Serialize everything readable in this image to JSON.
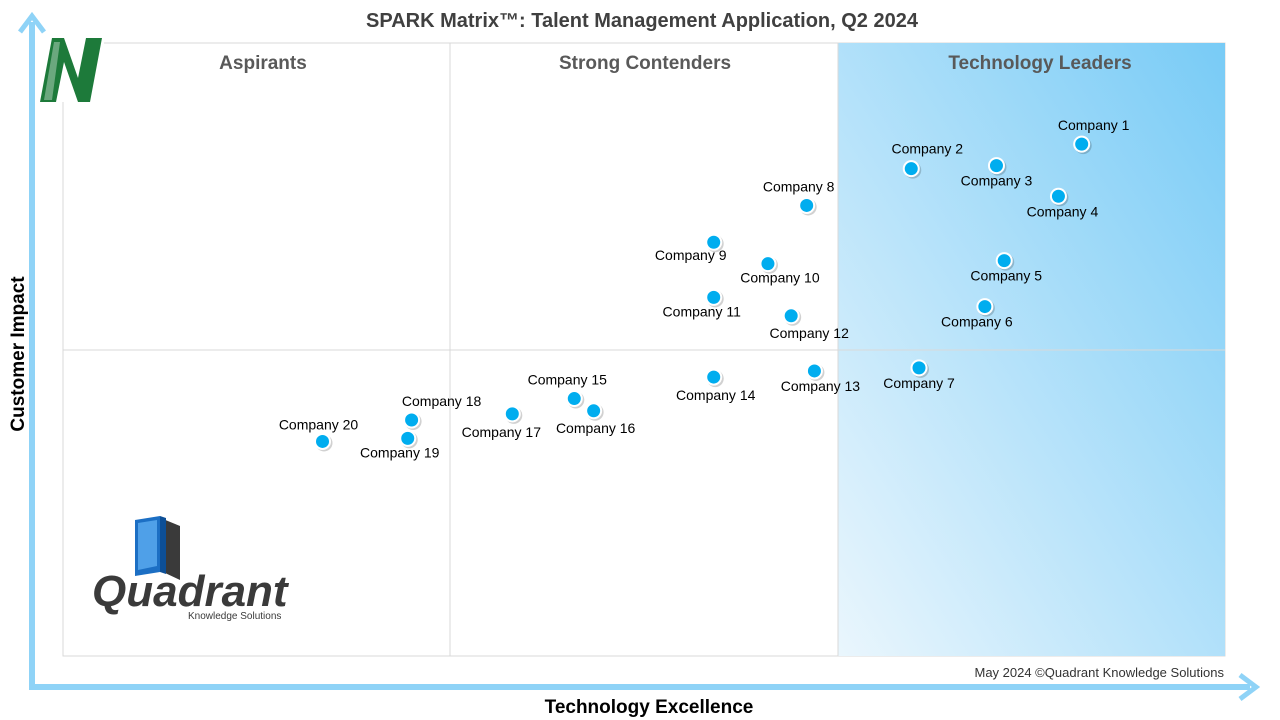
{
  "chart_data": {
    "type": "scatter",
    "title": "SPARK Matrix™: Talent Management Application, Q2 2024",
    "xlabel": "Technology Excellence",
    "ylabel": "Customer Impact",
    "xlim": [
      0,
      3
    ],
    "ylim": [
      0,
      2
    ],
    "quadrants": [
      {
        "label": "Aspirants"
      },
      {
        "label": "Strong Contenders"
      },
      {
        "label": "Technology Leaders"
      }
    ],
    "points": [
      {
        "name": "Company 1",
        "x": 2.63,
        "y": 1.67
      },
      {
        "name": "Company 2",
        "x": 2.19,
        "y": 1.59
      },
      {
        "name": "Company 3",
        "x": 2.41,
        "y": 1.6
      },
      {
        "name": "Company 4",
        "x": 2.57,
        "y": 1.5
      },
      {
        "name": "Company 5",
        "x": 2.43,
        "y": 1.29
      },
      {
        "name": "Company 6",
        "x": 2.38,
        "y": 1.14
      },
      {
        "name": "Company 7",
        "x": 2.21,
        "y": 0.94
      },
      {
        "name": "Company 8",
        "x": 1.92,
        "y": 1.47
      },
      {
        "name": "Company 9",
        "x": 1.68,
        "y": 1.35
      },
      {
        "name": "Company 10",
        "x": 1.82,
        "y": 1.28
      },
      {
        "name": "Company 11",
        "x": 1.68,
        "y": 1.17
      },
      {
        "name": "Company 12",
        "x": 1.88,
        "y": 1.11
      },
      {
        "name": "Company 13",
        "x": 1.94,
        "y": 0.93
      },
      {
        "name": "Company 14",
        "x": 1.68,
        "y": 0.91
      },
      {
        "name": "Company 15",
        "x": 1.32,
        "y": 0.84
      },
      {
        "name": "Company 16",
        "x": 1.37,
        "y": 0.8
      },
      {
        "name": "Company 17",
        "x": 1.16,
        "y": 0.79
      },
      {
        "name": "Company 18",
        "x": 0.9,
        "y": 0.77
      },
      {
        "name": "Company 19",
        "x": 0.89,
        "y": 0.71
      },
      {
        "name": "Company 20",
        "x": 0.67,
        "y": 0.7
      }
    ]
  },
  "footer": "May 2024 ©Quadrant Knowledge Solutions",
  "logo": {
    "word": "Quadrant",
    "sub": "Knowledge Solutions"
  },
  "colors": {
    "axis_arrow": "#8fd3f7",
    "point": "#00adef",
    "leaders_fill_light": "#e6f5fd",
    "leaders_fill_dark": "#7fcef7",
    "grid": "#d9d9d9",
    "badge_green": "#1d7a3a"
  },
  "icons": {
    "badge": "n-badge-icon",
    "logo": "book-icon"
  }
}
